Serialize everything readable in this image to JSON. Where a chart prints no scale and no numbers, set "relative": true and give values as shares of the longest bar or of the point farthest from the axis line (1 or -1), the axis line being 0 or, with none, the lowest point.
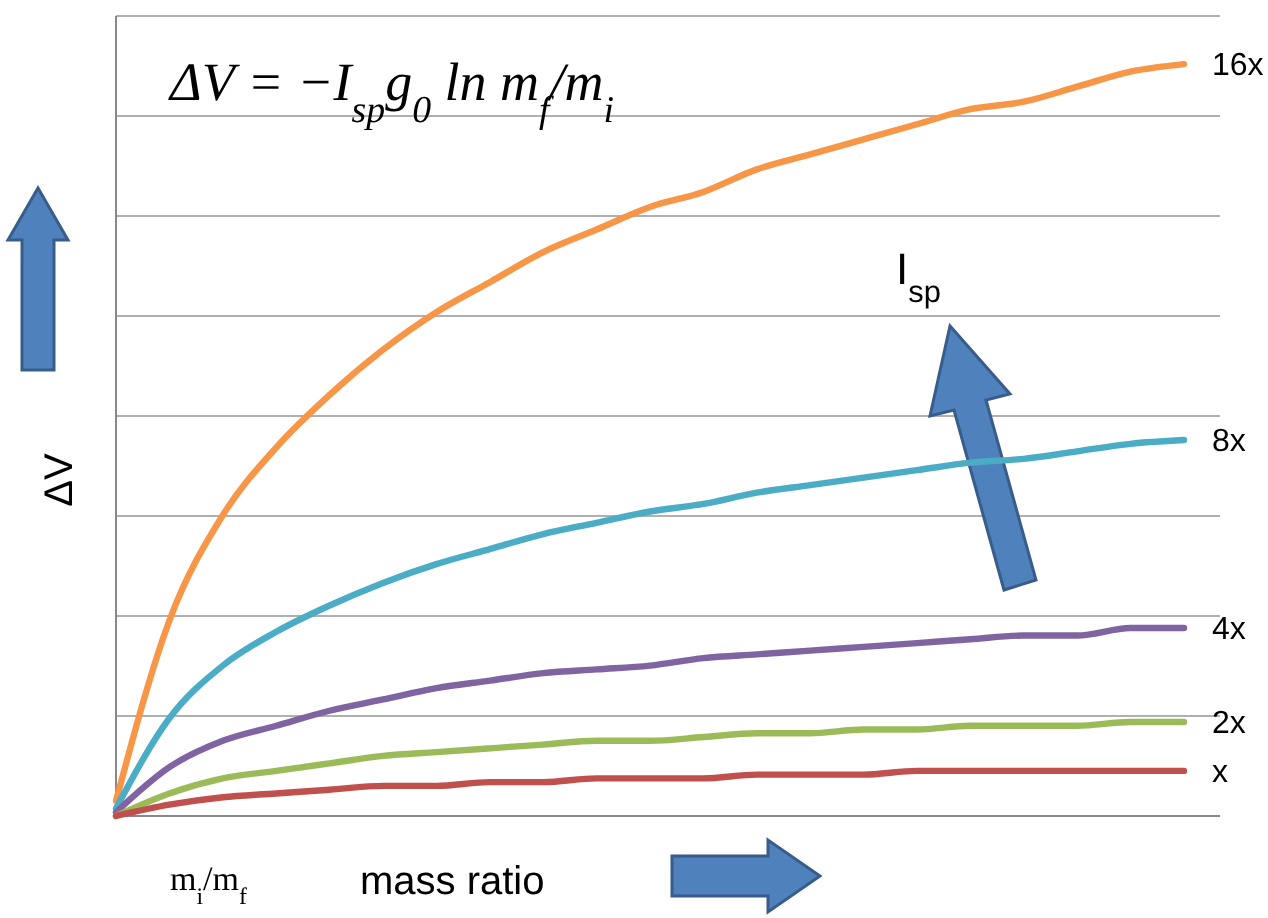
{
  "chart_data": {
    "type": "line",
    "relative": true,
    "grid": "y",
    "marker": "none",
    "line_style": "solid",
    "title": "ΔV = −I$_{sp}$g$_{0}$ ln m$_{f}$/m$_{i}$",
    "ylabel": "ΔV",
    "xlabel": "mass ratio",
    "annotations": [
      "m$_{i}$/m$_{f}$",
      "I$_{sp}$"
    ],
    "categories": [
      null,
      null,
      null,
      null,
      null,
      null,
      null,
      null,
      null,
      null,
      null,
      null,
      null,
      null,
      null,
      null,
      null,
      null,
      null,
      null,
      null
    ],
    "series": [
      {
        "name": "16x",
        "color": "#f79646",
        "values": [
          0.02,
          0.26,
          0.4,
          0.49,
          0.56,
          0.62,
          0.67,
          0.71,
          0.75,
          0.78,
          0.81,
          0.83,
          0.86,
          0.88,
          0.9,
          0.92,
          0.94,
          0.95,
          0.97,
          0.99,
          1.0
        ]
      },
      {
        "name": "8x",
        "color": "#4bacc6",
        "values": [
          0.01,
          0.13,
          0.2,
          0.245,
          0.28,
          0.31,
          0.335,
          0.355,
          0.375,
          0.39,
          0.405,
          0.415,
          0.43,
          0.44,
          0.45,
          0.46,
          0.47,
          0.475,
          0.485,
          0.495,
          0.5
        ]
      },
      {
        "name": "4x",
        "color": "#8064a2",
        "values": [
          0.005,
          0.065,
          0.1,
          0.12,
          0.14,
          0.155,
          0.17,
          0.18,
          0.19,
          0.195,
          0.2,
          0.21,
          0.215,
          0.22,
          0.225,
          0.23,
          0.235,
          0.24,
          0.24,
          0.25,
          0.25
        ]
      },
      {
        "name": "2x",
        "color": "#9bbb59",
        "values": [
          0,
          0.03,
          0.05,
          0.06,
          0.07,
          0.08,
          0.085,
          0.09,
          0.095,
          0.1,
          0.1,
          0.105,
          0.11,
          0.11,
          0.115,
          0.115,
          0.12,
          0.12,
          0.12,
          0.125,
          0.125
        ]
      },
      {
        "name": "x",
        "color": "#c0504d",
        "values": [
          0,
          0.015,
          0.025,
          0.03,
          0.035,
          0.04,
          0.04,
          0.045,
          0.045,
          0.05,
          0.05,
          0.05,
          0.055,
          0.055,
          0.055,
          0.06,
          0.06,
          0.06,
          0.06,
          0.06,
          0.06
        ]
      }
    ]
  }
}
